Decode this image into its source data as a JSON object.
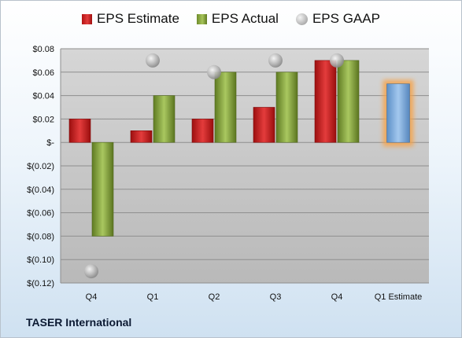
{
  "chart_data": {
    "type": "bar",
    "categories": [
      "Q4",
      "Q1",
      "Q2",
      "Q3",
      "Q4",
      "Q1 Estimate"
    ],
    "series": [
      {
        "name": "EPS Estimate",
        "values": [
          0.02,
          0.01,
          0.02,
          0.03,
          0.07,
          null
        ],
        "color": "#c8201f"
      },
      {
        "name": "EPS Actual",
        "values": [
          -0.08,
          0.04,
          0.06,
          0.06,
          0.07,
          null
        ],
        "color": "#8daf44"
      },
      {
        "name": "EPS GAAP",
        "values": [
          -0.11,
          0.07,
          0.06,
          0.07,
          0.07,
          null
        ],
        "color": "#a9a9a9",
        "marker": "circle"
      }
    ],
    "forecast": {
      "category": "Q1 Estimate",
      "value": 0.05,
      "color": "#7fb0e0",
      "highlight": "#f6a34a"
    },
    "yticks": [
      "$0.08",
      "$0.06",
      "$0.04",
      "$0.02",
      "$-",
      "$(0.02)",
      "$(0.04)",
      "$(0.06)",
      "$(0.08)",
      "$(0.10)",
      "$(0.12)"
    ],
    "ylim": [
      -0.12,
      0.08
    ],
    "grid": true,
    "legend_position": "top"
  },
  "footer": {
    "company": "TASER International"
  }
}
